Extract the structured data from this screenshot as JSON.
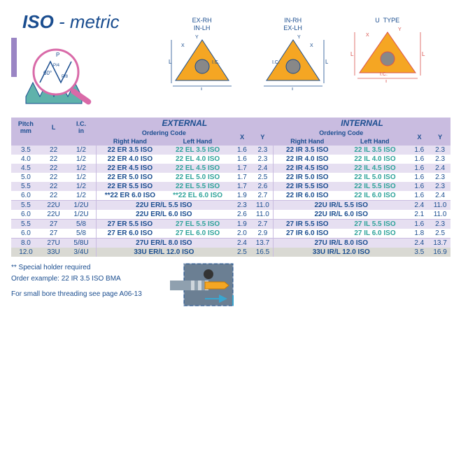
{
  "title": {
    "main": "ISO",
    "sub": " - metric"
  },
  "diagram_labels": {
    "g1": "EX-RH\nIN-LH",
    "g2": "IN-RH\nEX-LH",
    "g3": "U  TYPE"
  },
  "colors": {
    "brandBlue": "#1a4d8f",
    "teal": "#2fa39a",
    "lilac": "#e6dff1",
    "purpleHdr": "#c9bce0",
    "grey": "#d9d9d3",
    "orange": "#f5a623",
    "pinkMag": "#d96aa8",
    "steel": "#6b7f93"
  },
  "headers": {
    "external": "EXTERNAL",
    "internal": "INTERNAL",
    "ordering": "Ordering Code",
    "rh": "Right Hand",
    "lh": "Left Hand",
    "pitch": "Pitch",
    "mm": "mm",
    "L": "L",
    "IC": "I.C.",
    "in": "in",
    "X": "X",
    "Y": "Y"
  },
  "rows": [
    {
      "pitch": "3.5",
      "L": "22",
      "IC": "1/2",
      "erh": "22 ER 3.5 ISO",
      "elh": "22 EL 3.5 ISO",
      "ex": "1.6",
      "ey": "2.3",
      "irh": "22 IR 3.5 ISO",
      "ilh": "22 IL 3.5 ISO",
      "ix": "1.6",
      "iy": "2.3",
      "rc": "lilac",
      "span": false
    },
    {
      "pitch": "4.0",
      "L": "22",
      "IC": "1/2",
      "erh": "22 ER 4.0 ISO",
      "elh": "22 EL 4.0 ISO",
      "ex": "1.6",
      "ey": "2.3",
      "irh": "22 IR 4.0 ISO",
      "ilh": "22 IL 4.0 ISO",
      "ix": "1.6",
      "iy": "2.3",
      "rc": "",
      "span": false
    },
    {
      "pitch": "4.5",
      "L": "22",
      "IC": "1/2",
      "erh": "22 ER 4.5 ISO",
      "elh": "22 EL 4.5 ISO",
      "ex": "1.7",
      "ey": "2.4",
      "irh": "22 IR 4.5 ISO",
      "ilh": "22 IL 4.5 ISO",
      "ix": "1.6",
      "iy": "2.4",
      "rc": "lilac",
      "span": false
    },
    {
      "pitch": "5.0",
      "L": "22",
      "IC": "1/2",
      "erh": "22 ER 5.0 ISO",
      "elh": "22 EL 5.0 ISO",
      "ex": "1.7",
      "ey": "2.5",
      "irh": "22 IR 5.0 ISO",
      "ilh": "22 IL 5.0 ISO",
      "ix": "1.6",
      "iy": "2.3",
      "rc": "",
      "span": false
    },
    {
      "pitch": "5.5",
      "L": "22",
      "IC": "1/2",
      "erh": "22 ER 5.5 ISO",
      "elh": "22 EL 5.5 ISO",
      "ex": "1.7",
      "ey": "2.6",
      "irh": "22 IR 5.5 ISO",
      "ilh": "22 IL 5.5 ISO",
      "ix": "1.6",
      "iy": "2.3",
      "rc": "lilac",
      "span": false
    },
    {
      "pitch": "6.0",
      "L": "22",
      "IC": "1/2",
      "erh": "**22 ER 6.0 ISO",
      "elh": "**22 EL 6.0 ISO",
      "ex": "1.9",
      "ey": "2.7",
      "irh": "22 IR 6.0 ISO",
      "ilh": "22 IL 6.0 ISO",
      "ix": "1.6",
      "iy": "2.4",
      "rc": "",
      "span": false,
      "sep": true
    },
    {
      "pitch": "5.5",
      "L": "22U",
      "IC": "1/2U",
      "erh": "22U ER/L 5.5 ISO",
      "elh": "",
      "ex": "2.3",
      "ey": "11.0",
      "irh": "22U IR/L 5.5 ISO",
      "ilh": "",
      "ix": "2.4",
      "iy": "11.0",
      "rc": "lilac",
      "span": true
    },
    {
      "pitch": "6.0",
      "L": "22U",
      "IC": "1/2U",
      "erh": "22U ER/L 6.0 ISO",
      "elh": "",
      "ex": "2.6",
      "ey": "11.0",
      "irh": "22U IR/L 6.0 ISO",
      "ilh": "",
      "ix": "2.1",
      "iy": "11.0",
      "rc": "",
      "span": true,
      "sep": true
    },
    {
      "pitch": "5.5",
      "L": "27",
      "IC": "5/8",
      "erh": "27 ER 5.5 ISO",
      "elh": "27 EL 5.5 ISO",
      "ex": "1.9",
      "ey": "2.7",
      "irh": "27 IR 5.5 ISO",
      "ilh": "27 IL 5.5 ISO",
      "ix": "1.6",
      "iy": "2.3",
      "rc": "lilac",
      "span": false
    },
    {
      "pitch": "6.0",
      "L": "27",
      "IC": "5/8",
      "erh": "27 ER 6.0 ISO",
      "elh": "27 EL 6.0 ISO",
      "ex": "2.0",
      "ey": "2.9",
      "irh": "27 IR 6.0 ISO",
      "ilh": "27 IL 6.0 ISO",
      "ix": "1.8",
      "iy": "2.5",
      "rc": "",
      "span": false,
      "sep": true
    },
    {
      "pitch": "8.0",
      "L": "27U",
      "IC": "5/8U",
      "erh": "27U ER/L  8.0 ISO",
      "elh": "",
      "ex": "2.4",
      "ey": "13.7",
      "irh": "27U IR/L  8.0 ISO",
      "ilh": "",
      "ix": "2.4",
      "iy": "13.7",
      "rc": "lilac",
      "span": true
    },
    {
      "pitch": "12.0",
      "L": "33U",
      "IC": "3/4U",
      "erh": "33U ER/L 12.0 ISO",
      "elh": "",
      "ex": "2.5",
      "ey": "16.5",
      "irh": "33U IR/L 12.0 ISO",
      "ilh": "",
      "ix": "3.5",
      "iy": "16.9",
      "rc": "grey",
      "span": true
    }
  ],
  "notes": {
    "special": "** Special holder required",
    "example": "Order example: 22 IR 3.5 ISO BMA",
    "smallbore": "For small bore threading see page A06-13"
  }
}
